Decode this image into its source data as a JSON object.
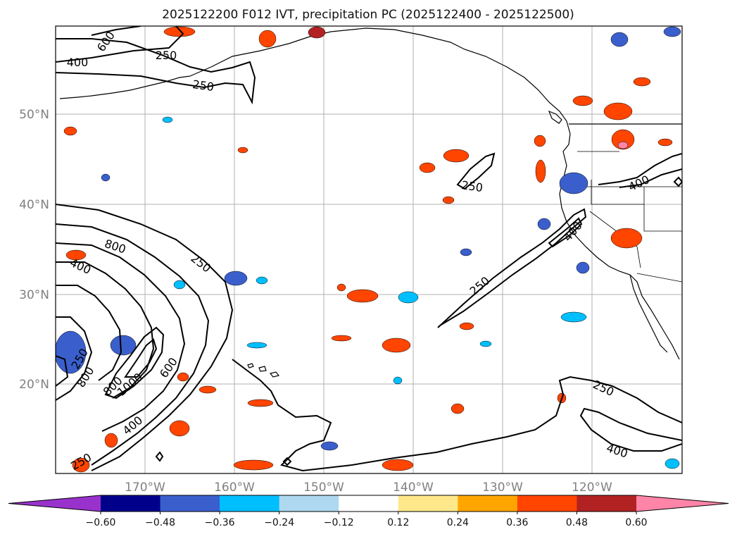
{
  "title": "2025122200 F012 IVT, precipitation PC (2025122400 - 2025122500)",
  "map": {
    "lon_labels": [
      "170°W",
      "160°W",
      "150°W",
      "140°W",
      "130°W",
      "120°W"
    ],
    "lat_labels": [
      "50°N",
      "40°N",
      "30°N",
      "20°N"
    ]
  },
  "contour_labels": [
    "600",
    "400",
    "250",
    "250",
    "250",
    "800",
    "400",
    "250",
    "250",
    "800",
    "1000",
    "600",
    "800",
    "400",
    "250",
    "400",
    "250",
    "400",
    "250",
    "400"
  ],
  "colorbar": {
    "tick_labels": [
      "−0.60",
      "−0.48",
      "−0.36",
      "−0.24",
      "−0.12",
      "0.12",
      "0.24",
      "0.36",
      "0.48",
      "0.60"
    ],
    "colors": [
      "#9932cc",
      "#00008b",
      "#3a5fcd",
      "#00bfff",
      "#add8f0",
      "#ffffff",
      "#ffe88a",
      "#ffa500",
      "#ff4500",
      "#b22222",
      "#ff85a8"
    ]
  }
}
